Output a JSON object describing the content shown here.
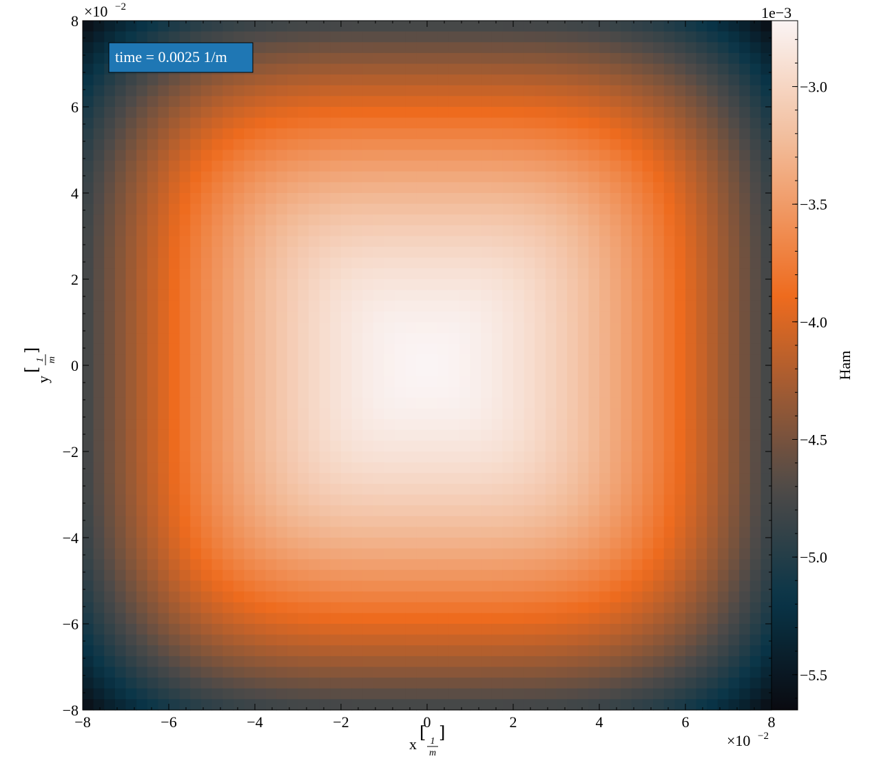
{
  "chart_data": {
    "type": "heatmap",
    "x": {
      "range": [
        -8,
        8
      ],
      "ticks": [
        -8,
        -6,
        -4,
        -2,
        0,
        2,
        4,
        6,
        8
      ],
      "tick_labels": [
        "−8",
        "−6",
        "−4",
        "−2",
        "0",
        "2",
        "4",
        "6",
        "8"
      ],
      "label_text": "x",
      "unit": "1/m",
      "unit_num": "1",
      "unit_den": "m",
      "scale_base": "×10",
      "scale_exp": "−2"
    },
    "y": {
      "range": [
        -8,
        8
      ],
      "ticks": [
        -8,
        -6,
        -4,
        -2,
        0,
        2,
        4,
        6,
        8
      ],
      "tick_labels": [
        "−8",
        "−6",
        "−4",
        "−2",
        "0",
        "2",
        "4",
        "6",
        "8"
      ],
      "label_text": "y",
      "unit": "1/m",
      "unit_num": "1",
      "unit_den": "m",
      "scale_base": "×10",
      "scale_exp": "−2"
    },
    "grid": {
      "nx": 64,
      "ny": 64
    },
    "field": {
      "center_value": -2.72,
      "corner_value": -5.65,
      "min": -5.65,
      "max": -2.72
    },
    "colorbar": {
      "label": "Ham",
      "scale_text": "1e−3",
      "range": [
        -5.65,
        -2.72
      ],
      "ticks": [
        -3.0,
        -3.5,
        -4.0,
        -4.5,
        -5.0,
        -5.5
      ],
      "tick_labels": [
        "−3.0",
        "−3.5",
        "−4.0",
        "−4.5",
        "−5.0",
        "−5.5"
      ],
      "colors": [
        "#0a0a10",
        "#093548",
        "#4e4a48",
        "#ee6b1e",
        "#f2ba97",
        "#faf4f4"
      ],
      "color_positions": [
        0.0,
        0.16,
        0.32,
        0.6,
        0.82,
        1.0
      ]
    },
    "annotation": {
      "text": "time = 0.0025 1/m",
      "placement": "top-left",
      "box_color": "#1f77b4"
    }
  }
}
